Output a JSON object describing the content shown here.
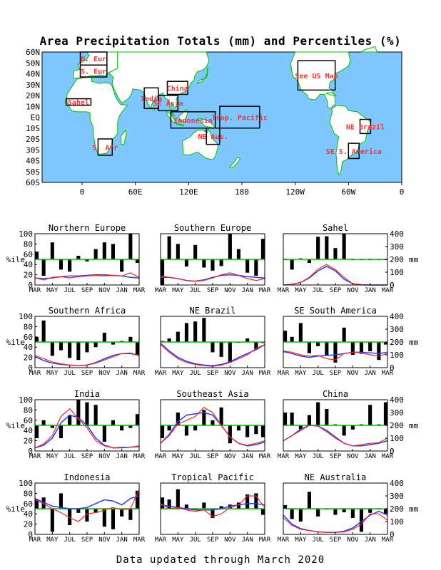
{
  "title": "Area Precipitation Totals (mm) and Percentiles (%)",
  "footer": "Data updated through March 2020",
  "colors": {
    "ocean": "#7fc7ff",
    "land": "#ffffff",
    "coast": "#00c000",
    "box": "#000000",
    "region_text": "#ff3030",
    "bars": "#000000",
    "median_line": "#00c000",
    "observed": "#ff2020",
    "normal": "#2040ff"
  },
  "map": {
    "lat_labels": [
      "60N",
      "50N",
      "40N",
      "30N",
      "20N",
      "10N",
      "EQ",
      "10S",
      "20S",
      "30S",
      "40S",
      "50S",
      "60S"
    ],
    "lon_labels": [
      "0",
      "60E",
      "120E",
      "180",
      "120W",
      "60W",
      "0"
    ],
    "regions": [
      {
        "label": "N. Eur",
        "lon": [
          -2,
          28
        ],
        "lat": [
          48,
          60
        ]
      },
      {
        "label": "S. Eur",
        "lon": [
          -2,
          28
        ],
        "lat": [
          37,
          48
        ]
      },
      {
        "label": "Sahel",
        "lon": [
          -18,
          10
        ],
        "lat": [
          11,
          17
        ]
      },
      {
        "label": "India",
        "lon": [
          70,
          86
        ],
        "lat": [
          8,
          27
        ]
      },
      {
        "label": "SE Asia",
        "lon": [
          86,
          108
        ],
        "lat": [
          6,
          20
        ]
      },
      {
        "label": "China",
        "lon": [
          96,
          119
        ],
        "lat": [
          21,
          33
        ]
      },
      {
        "label": "Indonesia",
        "lon": [
          100,
          150
        ],
        "lat": [
          -10,
          5
        ]
      },
      {
        "label": "Trop. Pacific",
        "lon": [
          155,
          200
        ],
        "lat": [
          -10,
          10
        ]
      },
      {
        "label": "NE Aus.",
        "lon": [
          140,
          155
        ],
        "lat": [
          -25,
          -10
        ]
      },
      {
        "label": "S. Afr",
        "lon": [
          18,
          34
        ],
        "lat": [
          -35,
          -20
        ]
      },
      {
        "label": "See US Map",
        "lon": [
          243,
          285
        ],
        "lat": [
          25,
          52
        ]
      },
      {
        "label": "NE Brazil",
        "lon": [
          313,
          325
        ],
        "lat": [
          -15,
          -2
        ]
      },
      {
        "label": "SE S. America",
        "lon": [
          300,
          312
        ],
        "lat": [
          -38,
          -24
        ]
      }
    ]
  },
  "axis_labels": {
    "left": "%ile",
    "right": "mm"
  },
  "chart_data": [
    {
      "type": "bar",
      "title": "Northern Europe",
      "months": [
        "MAR",
        "MAY",
        "JUL",
        "SEP",
        "NOV",
        "JAN",
        "MAR"
      ],
      "ylim_pct": [
        0,
        100
      ],
      "ylim_mm": [
        0,
        400
      ],
      "percentiles": [
        65,
        18,
        83,
        30,
        26,
        57,
        46,
        70,
        83,
        80,
        26,
        100,
        43
      ],
      "observed_mm": [
        55,
        40,
        60,
        65,
        55,
        65,
        70,
        75,
        70,
        75,
        70,
        95,
        60
      ],
      "normal_mm": [
        55,
        50,
        55,
        65,
        70,
        70,
        75,
        80,
        80,
        75,
        70,
        60,
        55
      ]
    },
    {
      "type": "bar",
      "title": "Southern Europe",
      "months": [
        "MAR",
        "MAY",
        "JUL",
        "SEP",
        "NOV",
        "JAN",
        "MAR"
      ],
      "ylim_pct": [
        0,
        100
      ],
      "ylim_mm": [
        0,
        400
      ],
      "percentiles": [
        0,
        95,
        80,
        36,
        78,
        34,
        28,
        37,
        100,
        70,
        24,
        18,
        90
      ],
      "observed_mm": [
        70,
        60,
        50,
        35,
        30,
        35,
        55,
        80,
        95,
        75,
        50,
        35,
        50
      ],
      "normal_mm": [
        60,
        60,
        50,
        35,
        30,
        40,
        60,
        75,
        80,
        75,
        65,
        60,
        55
      ]
    },
    {
      "type": "bar",
      "title": "Sahel",
      "months": [
        "MAR",
        "MAY",
        "JUL",
        "SEP",
        "NOV",
        "JAN",
        "MAR"
      ],
      "ylim_pct": [
        0,
        100
      ],
      "ylim_mm": [
        0,
        400
      ],
      "percentiles": [
        49,
        30,
        52,
        43,
        94,
        95,
        72,
        100,
        50,
        50,
        50,
        50,
        50
      ],
      "observed_mm": [
        0,
        5,
        20,
        60,
        125,
        160,
        120,
        60,
        10,
        3,
        0,
        0,
        0
      ],
      "normal_mm": [
        0,
        5,
        20,
        55,
        110,
        145,
        110,
        45,
        10,
        1,
        0,
        0,
        0
      ]
    },
    {
      "type": "bar",
      "title": "Southern Africa",
      "months": [
        "MAR",
        "MAY",
        "JUL",
        "SEP",
        "NOV",
        "JAN",
        "MAR"
      ],
      "ylim_pct": [
        0,
        100
      ],
      "ylim_mm": [
        0,
        400
      ],
      "percentiles": [
        60,
        92,
        23,
        34,
        19,
        15,
        30,
        40,
        68,
        45,
        52,
        60,
        25
      ],
      "observed_mm": [
        95,
        70,
        45,
        30,
        20,
        15,
        20,
        35,
        60,
        85,
        110,
        115,
        95
      ],
      "normal_mm": [
        85,
        55,
        35,
        25,
        20,
        15,
        20,
        40,
        70,
        95,
        110,
        110,
        95
      ]
    },
    {
      "type": "bar",
      "title": "NE Brazil",
      "months": [
        "MAR",
        "MAY",
        "JUL",
        "SEP",
        "NOV",
        "JAN",
        "MAR"
      ],
      "ylim_pct": [
        0,
        100
      ],
      "ylim_mm": [
        0,
        400
      ],
      "percentiles": [
        52,
        57,
        70,
        87,
        90,
        97,
        30,
        21,
        10,
        50,
        57,
        35,
        48
      ],
      "observed_mm": [
        180,
        120,
        70,
        40,
        25,
        15,
        10,
        20,
        40,
        70,
        100,
        150,
        180
      ],
      "normal_mm": [
        190,
        130,
        80,
        50,
        30,
        20,
        15,
        25,
        45,
        80,
        110,
        140,
        180
      ]
    },
    {
      "type": "bar",
      "title": "SE South America",
      "months": [
        "MAR",
        "MAY",
        "JUL",
        "SEP",
        "NOV",
        "JAN",
        "MAR"
      ],
      "ylim_pct": [
        0,
        100
      ],
      "ylim_mm": [
        0,
        400
      ],
      "percentiles": [
        72,
        60,
        87,
        28,
        42,
        24,
        10,
        78,
        25,
        27,
        32,
        15,
        45
      ],
      "observed_mm": [
        130,
        120,
        100,
        90,
        95,
        70,
        60,
        110,
        120,
        115,
        100,
        90,
        110
      ],
      "normal_mm": [
        125,
        110,
        90,
        80,
        90,
        95,
        100,
        110,
        120,
        120,
        115,
        110,
        120
      ]
    },
    {
      "type": "bar",
      "title": "India",
      "months": [
        "MAR",
        "MAY",
        "JUL",
        "SEP",
        "NOV",
        "JAN",
        "MAR"
      ],
      "ylim_pct": [
        0,
        100
      ],
      "ylim_mm": [
        0,
        400
      ],
      "percentiles": [
        25,
        60,
        45,
        25,
        70,
        100,
        95,
        90,
        18,
        60,
        40,
        45,
        72
      ],
      "observed_mm": [
        25,
        55,
        120,
        270,
        330,
        250,
        180,
        80,
        40,
        25,
        30,
        30,
        40
      ],
      "normal_mm": [
        25,
        45,
        100,
        220,
        280,
        260,
        200,
        100,
        45,
        25,
        25,
        30,
        35
      ]
    },
    {
      "type": "bar",
      "title": "Southeast Asia",
      "months": [
        "MAR",
        "MAY",
        "JUL",
        "SEP",
        "NOV",
        "JAN",
        "MAR"
      ],
      "ylim_pct": [
        0,
        100
      ],
      "ylim_mm": [
        0,
        400
      ],
      "percentiles": [
        25,
        40,
        75,
        30,
        40,
        80,
        60,
        85,
        15,
        40,
        27,
        33,
        27
      ],
      "observed_mm": [
        60,
        120,
        210,
        240,
        270,
        340,
        300,
        200,
        110,
        60,
        45,
        60,
        80
      ],
      "normal_mm": [
        60,
        130,
        230,
        280,
        290,
        300,
        280,
        200,
        110,
        60,
        40,
        50,
        70
      ]
    },
    {
      "type": "bar",
      "title": "China",
      "months": [
        "MAR",
        "MAY",
        "JUL",
        "SEP",
        "NOV",
        "JAN",
        "MAR"
      ],
      "ylim_pct": [
        0,
        100
      ],
      "ylim_mm": [
        0,
        400
      ],
      "percentiles": [
        75,
        75,
        42,
        70,
        95,
        82,
        52,
        30,
        42,
        52,
        90,
        52,
        95
      ],
      "observed_mm": [
        80,
        120,
        160,
        200,
        195,
        150,
        100,
        60,
        40,
        50,
        60,
        65,
        100
      ],
      "normal_mm": [
        80,
        120,
        170,
        200,
        195,
        160,
        110,
        60,
        40,
        40,
        50,
        60,
        80
      ]
    },
    {
      "type": "bar",
      "title": "Indonesia",
      "months": [
        "MAR",
        "MAY",
        "JUL",
        "SEP",
        "NOV",
        "JAN",
        "MAR"
      ],
      "ylim_pct": [
        0,
        100
      ],
      "ylim_mm": [
        0,
        400
      ],
      "percentiles": [
        68,
        72,
        5,
        80,
        18,
        42,
        25,
        42,
        15,
        10,
        35,
        28,
        85
      ],
      "observed_mm": [
        270,
        240,
        200,
        170,
        130,
        100,
        160,
        170,
        190,
        210,
        190,
        200,
        350
      ],
      "normal_mm": [
        280,
        250,
        220,
        210,
        200,
        200,
        210,
        240,
        270,
        260,
        230,
        280,
        300
      ]
    },
    {
      "type": "bar",
      "title": "Tropical Pacific",
      "months": [
        "MAR",
        "MAY",
        "JUL",
        "SEP",
        "NOV",
        "JAN",
        "MAR"
      ],
      "ylim_pct": [
        0,
        100
      ],
      "ylim_mm": [
        0,
        400
      ],
      "percentiles": [
        72,
        68,
        88,
        58,
        48,
        62,
        32,
        55,
        58,
        62,
        78,
        80,
        38
      ],
      "observed_mm": [
        240,
        200,
        210,
        190,
        180,
        190,
        140,
        160,
        210,
        230,
        300,
        300,
        210
      ],
      "normal_mm": [
        230,
        220,
        210,
        200,
        190,
        190,
        190,
        200,
        220,
        230,
        240,
        240,
        230
      ]
    },
    {
      "type": "bar",
      "title": "NE Australia",
      "months": [
        "MAR",
        "MAY",
        "JUL",
        "SEP",
        "NOV",
        "JAN",
        "MAR"
      ],
      "ylim_pct": [
        0,
        100
      ],
      "ylim_mm": [
        0,
        400
      ],
      "percentiles": [
        57,
        30,
        25,
        83,
        35,
        50,
        38,
        43,
        32,
        5,
        42,
        50,
        40
      ],
      "observed_mm": [
        130,
        70,
        40,
        30,
        20,
        15,
        15,
        20,
        40,
        80,
        160,
        160,
        110
      ],
      "normal_mm": [
        150,
        80,
        45,
        30,
        20,
        15,
        15,
        25,
        50,
        100,
        150,
        180,
        150
      ]
    }
  ]
}
